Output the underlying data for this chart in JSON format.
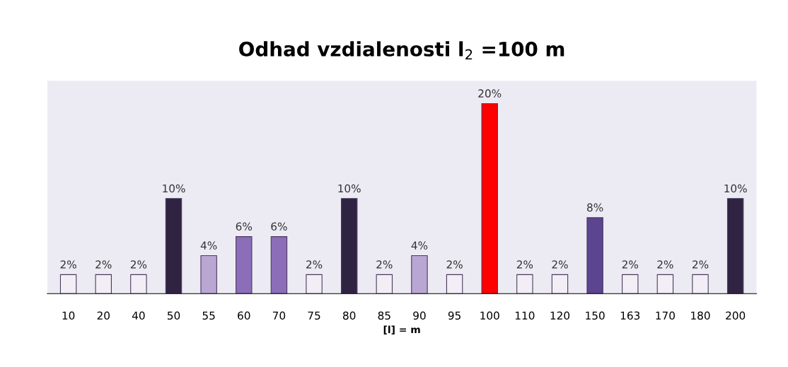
{
  "chart_data": {
    "type": "bar",
    "title": "Odhad vzdialenosti l$_{2}$ =100 m",
    "xlabel": "[l] = m",
    "categories": [
      "10",
      "20",
      "40",
      "50",
      "55",
      "60",
      "70",
      "75",
      "80",
      "85",
      "90",
      "95",
      "100",
      "110",
      "120",
      "150",
      "163",
      "170",
      "180",
      "200"
    ],
    "values": [
      2,
      2,
      2,
      10,
      4,
      6,
      6,
      2,
      10,
      2,
      4,
      2,
      20,
      2,
      2,
      8,
      2,
      2,
      2,
      10
    ],
    "colors": [
      "#f3eef6",
      "#f3eef6",
      "#f3eef6",
      "#2f2342",
      "#b9a6d3",
      "#8b6db8",
      "#8b6db8",
      "#f3eef6",
      "#2f2342",
      "#f3eef6",
      "#b9a6d3",
      "#f3eef6",
      "#ff0000",
      "#f3eef6",
      "#f3eef6",
      "#5b4490",
      "#f3eef6",
      "#f3eef6",
      "#f3eef6",
      "#2f2342"
    ],
    "value_labels": [
      "2%",
      "2%",
      "2%",
      "10%",
      "4%",
      "6%",
      "6%",
      "2%",
      "10%",
      "2%",
      "4%",
      "2%",
      "20%",
      "2%",
      "2%",
      "8%",
      "2%",
      "2%",
      "2%",
      "10%"
    ],
    "grid": false,
    "legend": false
  }
}
